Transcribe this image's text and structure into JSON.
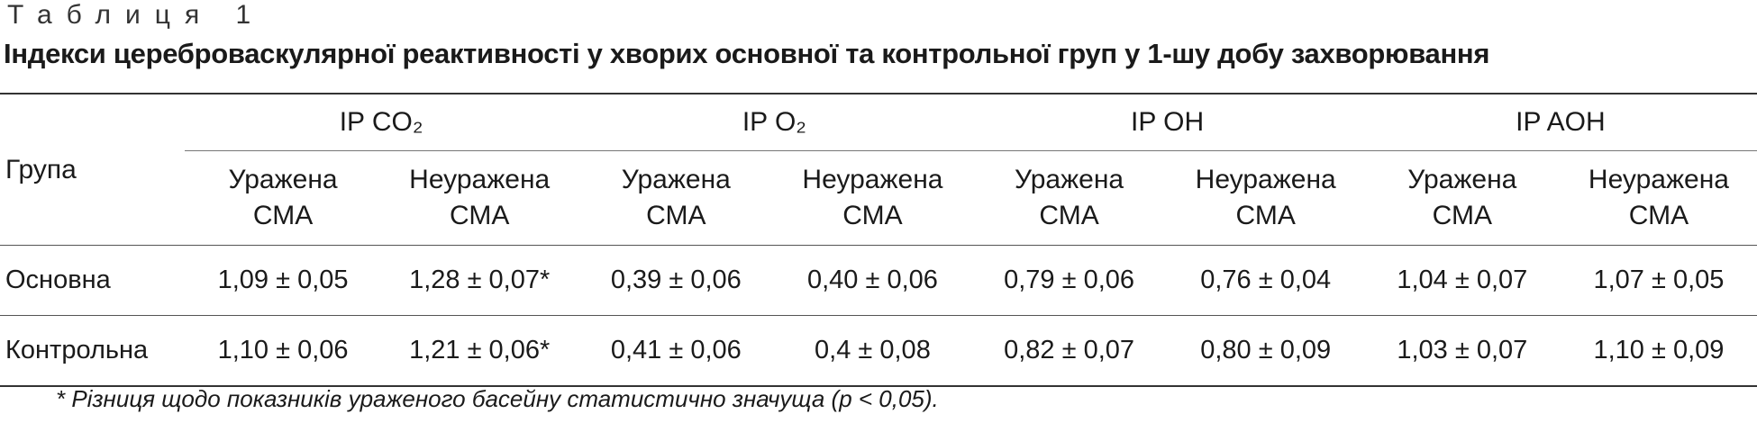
{
  "caption": "Таблиця 1",
  "title": "Індекси цереброваскулярної реактивності у хворих основної та контрольної груп у 1-шу добу захворювання",
  "table": {
    "group_header": "Група",
    "column_groups": [
      "IP CO₂",
      "IP O₂",
      "IP OH",
      "IP AOH"
    ],
    "subheaders": [
      "Уражена СМА",
      "Неуражена СМА",
      "Уражена СМА",
      "Неуражена СМА",
      "Уражена СМА",
      "Неуражена СМА",
      "Уражена СМА",
      "Неуражена СМА"
    ],
    "rows": [
      [
        "Основна",
        "1,09 ± 0,05",
        "1,28 ± 0,07*",
        "0,39 ± 0,06",
        "0,40 ± 0,06",
        "0,79 ± 0,06",
        "0,76 ± 0,04",
        "1,04 ± 0,07",
        "1,07 ± 0,05"
      ],
      [
        "Контрольна",
        "1,10 ± 0,06",
        "1,21 ± 0,06*",
        "0,41 ± 0,06",
        "0,4 ± 0,08",
        "0,82 ± 0,07",
        "0,80 ± 0,09",
        "1,03 ± 0,07",
        "1,10 ± 0,09"
      ]
    ]
  },
  "footnote": "* Різниця щодо показників ураженого басейну статистично значуща (p < 0,05)."
}
